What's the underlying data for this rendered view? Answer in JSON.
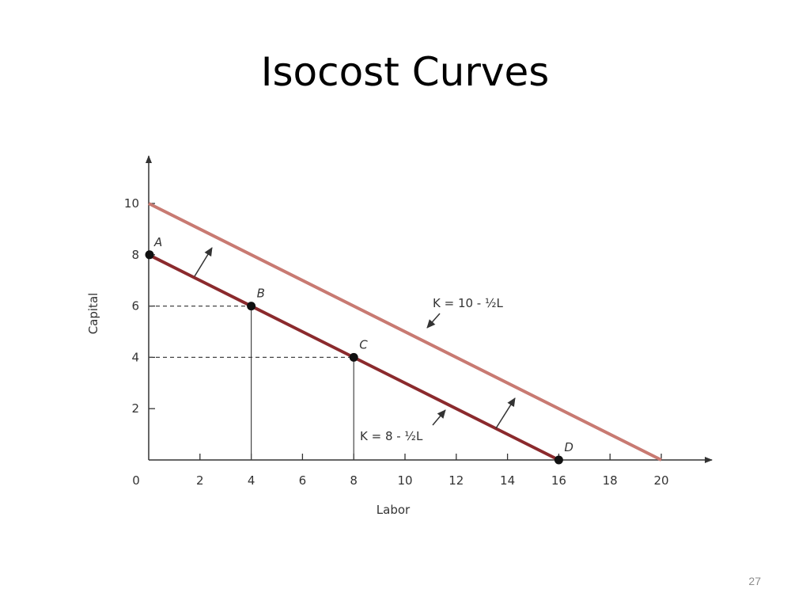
{
  "slide": {
    "title": "Isocost Curves",
    "page_number": "27"
  },
  "chart_data": {
    "type": "line",
    "title": "",
    "xlabel": "Labor",
    "ylabel": "Capital",
    "xlim": [
      0,
      20
    ],
    "ylim": [
      0,
      10
    ],
    "x_ticks": [
      0,
      2,
      4,
      6,
      8,
      10,
      12,
      14,
      16,
      18,
      20
    ],
    "y_ticks": [
      2,
      4,
      6,
      8,
      10
    ],
    "grid": false,
    "series": [
      {
        "name": "K = 10 - ½L",
        "color": "#c87a72",
        "points": [
          [
            0,
            10
          ],
          [
            20,
            0
          ]
        ]
      },
      {
        "name": "K = 8 - ½L",
        "color": "#8b2a2d",
        "points": [
          [
            0,
            8
          ],
          [
            16,
            0
          ]
        ]
      }
    ],
    "points": [
      {
        "label": "A",
        "x": 0,
        "y": 8
      },
      {
        "label": "B",
        "x": 4,
        "y": 6
      },
      {
        "label": "C",
        "x": 8,
        "y": 4
      },
      {
        "label": "D",
        "x": 16,
        "y": 0
      }
    ],
    "annotations": [
      {
        "text": "K = 10 - ½L"
      },
      {
        "text": "K = 8 - ½L"
      }
    ]
  }
}
